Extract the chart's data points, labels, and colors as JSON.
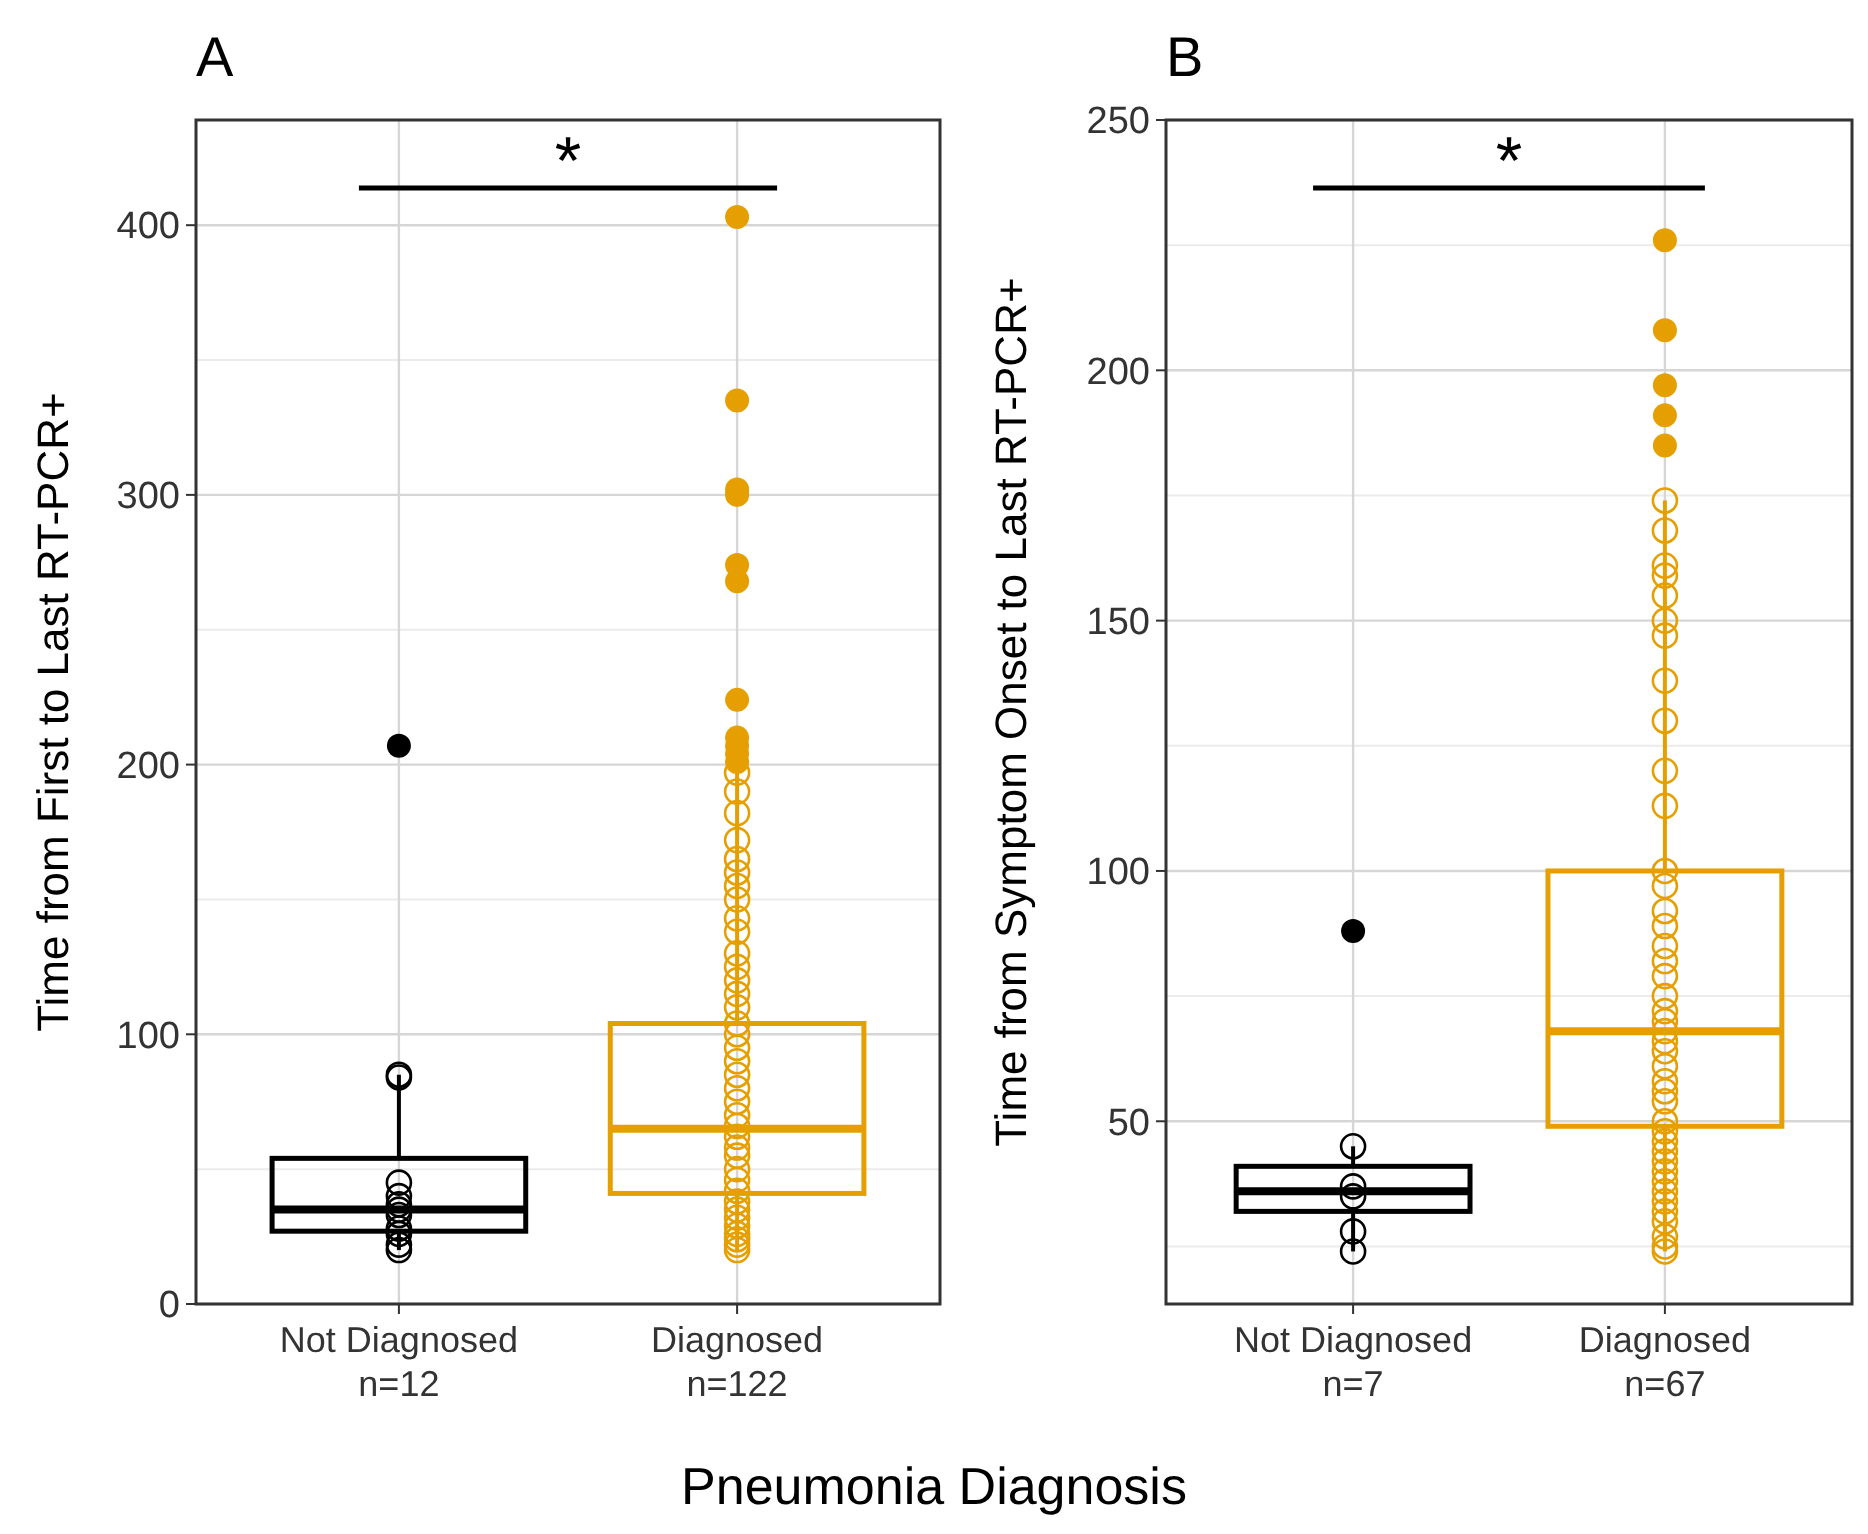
{
  "chart_data": [
    {
      "type": "box",
      "title": "A",
      "xlabel": "Pneumonia Diagnosis",
      "ylabel": "Time from First to Last RT-PCR+",
      "categories": [
        "Not Diagnosed\nn=12",
        "Diagnosed\nn=122"
      ],
      "colors": [
        "#000000",
        "#e69f00"
      ],
      "boxes": [
        {
          "low": 20,
          "q1": 27,
          "median": 35,
          "q3": 54,
          "high": 85,
          "outliers": [
            207
          ]
        },
        {
          "low": 20,
          "q1": 41,
          "median": 65,
          "q3": 104,
          "high": 198,
          "outliers": [
            403,
            335,
            302,
            300,
            274,
            268,
            224,
            210,
            207,
            204,
            201
          ]
        }
      ],
      "series": [
        {
          "type": "scatter",
          "color": "#000000",
          "x": [
            "Not Diagnosed\nn=12",
            "Not Diagnosed\nn=12",
            "Not Diagnosed\nn=12",
            "Not Diagnosed\nn=12",
            "Not Diagnosed\nn=12",
            "Not Diagnosed\nn=12",
            "Not Diagnosed\nn=12",
            "Not Diagnosed\nn=12",
            "Not Diagnosed\nn=12",
            "Not Diagnosed\nn=12",
            "Not Diagnosed\nn=12"
          ],
          "values": [
            85,
            84,
            45,
            40,
            37,
            35,
            33,
            28,
            26,
            22,
            20
          ]
        },
        {
          "type": "scatter",
          "color": "#e69f00",
          "x": [
            "Diagnosed\nn=122",
            "Diagnosed\nn=122",
            "Diagnosed\nn=122",
            "Diagnosed\nn=122",
            "Diagnosed\nn=122",
            "Diagnosed\nn=122",
            "Diagnosed\nn=122",
            "Diagnosed\nn=122",
            "Diagnosed\nn=122",
            "Diagnosed\nn=122",
            "Diagnosed\nn=122",
            "Diagnosed\nn=122",
            "Diagnosed\nn=122",
            "Diagnosed\nn=122",
            "Diagnosed\nn=122",
            "Diagnosed\nn=122",
            "Diagnosed\nn=122",
            "Diagnosed\nn=122",
            "Diagnosed\nn=122",
            "Diagnosed\nn=122",
            "Diagnosed\nn=122",
            "Diagnosed\nn=122",
            "Diagnosed\nn=122",
            "Diagnosed\nn=122",
            "Diagnosed\nn=122",
            "Diagnosed\nn=122",
            "Diagnosed\nn=122",
            "Diagnosed\nn=122",
            "Diagnosed\nn=122",
            "Diagnosed\nn=122",
            "Diagnosed\nn=122",
            "Diagnosed\nn=122",
            "Diagnosed\nn=122",
            "Diagnosed\nn=122",
            "Diagnosed\nn=122",
            "Diagnosed\nn=122",
            "Diagnosed\nn=122",
            "Diagnosed\nn=122"
          ],
          "values": [
            197,
            190,
            182,
            172,
            165,
            160,
            155,
            150,
            143,
            138,
            130,
            125,
            120,
            115,
            110,
            104,
            100,
            95,
            90,
            85,
            80,
            75,
            70,
            66,
            62,
            58,
            55,
            50,
            46,
            42,
            38,
            35,
            32,
            29,
            26,
            24,
            22,
            20
          ]
        }
      ],
      "ylim": [
        0,
        439
      ],
      "yticks": [
        0,
        100,
        200,
        300,
        400
      ],
      "grid": true,
      "marker": "circle",
      "annotations": [
        "*"
      ]
    },
    {
      "type": "box",
      "title": "B",
      "ylabel": "Time from Symptom Onset to Last RT-PCR+",
      "categories": [
        "Not Diagnosed\nn=7",
        "Diagnosed\nn=67"
      ],
      "colors": [
        "#000000",
        "#e69f00"
      ],
      "boxes": [
        {
          "low": 24,
          "q1": 32,
          "median": 36,
          "q3": 41,
          "high": 45,
          "outliers": [
            88
          ]
        },
        {
          "low": 24,
          "q1": 49,
          "median": 68,
          "q3": 100,
          "high": 174,
          "outliers": [
            226,
            208,
            197,
            191,
            185
          ]
        }
      ],
      "series": [
        {
          "type": "scatter",
          "color": "#000000",
          "x": [
            "Not Diagnosed\nn=7",
            "Not Diagnosed\nn=7",
            "Not Diagnosed\nn=7",
            "Not Diagnosed\nn=7",
            "Not Diagnosed\nn=7"
          ],
          "values": [
            45,
            37,
            35,
            28,
            24
          ]
        },
        {
          "type": "scatter",
          "color": "#e69f00",
          "x": [
            "Diagnosed\nn=67",
            "Diagnosed\nn=67",
            "Diagnosed\nn=67",
            "Diagnosed\nn=67",
            "Diagnosed\nn=67",
            "Diagnosed\nn=67",
            "Diagnosed\nn=67",
            "Diagnosed\nn=67",
            "Diagnosed\nn=67",
            "Diagnosed\nn=67",
            "Diagnosed\nn=67",
            "Diagnosed\nn=67",
            "Diagnosed\nn=67",
            "Diagnosed\nn=67",
            "Diagnosed\nn=67",
            "Diagnosed\nn=67",
            "Diagnosed\nn=67",
            "Diagnosed\nn=67",
            "Diagnosed\nn=67",
            "Diagnosed\nn=67",
            "Diagnosed\nn=67",
            "Diagnosed\nn=67",
            "Diagnosed\nn=67",
            "Diagnosed\nn=67",
            "Diagnosed\nn=67",
            "Diagnosed\nn=67",
            "Diagnosed\nn=67",
            "Diagnosed\nn=67",
            "Diagnosed\nn=67",
            "Diagnosed\nn=67",
            "Diagnosed\nn=67",
            "Diagnosed\nn=67",
            "Diagnosed\nn=67",
            "Diagnosed\nn=67",
            "Diagnosed\nn=67",
            "Diagnosed\nn=67",
            "Diagnosed\nn=67",
            "Diagnosed\nn=67",
            "Diagnosed\nn=67",
            "Diagnosed\nn=67",
            "Diagnosed\nn=67",
            "Diagnosed\nn=67"
          ],
          "values": [
            174,
            168,
            161,
            159,
            155,
            150,
            147,
            138,
            130,
            120,
            113,
            100,
            97,
            92,
            89,
            85,
            82,
            79,
            75,
            72,
            70,
            68,
            66,
            64,
            61,
            58,
            56,
            54,
            50,
            48,
            46,
            44,
            42,
            40,
            38,
            36,
            34,
            32,
            30,
            27,
            25,
            24
          ]
        }
      ],
      "ylim": [
        13.5,
        250
      ],
      "yticks": [
        50,
        100,
        150,
        200,
        250
      ],
      "grid": true,
      "marker": "circle",
      "annotations": [
        "*"
      ]
    }
  ]
}
